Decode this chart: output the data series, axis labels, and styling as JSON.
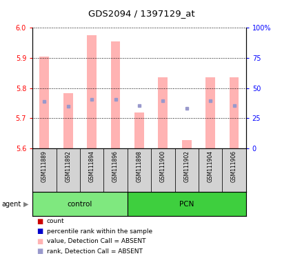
{
  "title": "GDS2094 / 1397129_at",
  "samples": [
    "GSM111889",
    "GSM111892",
    "GSM111894",
    "GSM111896",
    "GSM111898",
    "GSM111900",
    "GSM111902",
    "GSM111904",
    "GSM111906"
  ],
  "groups": [
    {
      "label": "control",
      "indices": [
        0,
        1,
        2,
        3
      ],
      "color": "#7fe87f"
    },
    {
      "label": "PCN",
      "indices": [
        4,
        5,
        6,
        7,
        8
      ],
      "color": "#3ecf3e"
    }
  ],
  "bar_tops": [
    5.905,
    5.783,
    5.975,
    5.955,
    5.718,
    5.835,
    5.627,
    5.836,
    5.836
  ],
  "bar_bottoms": [
    5.6,
    5.6,
    5.6,
    5.6,
    5.6,
    5.6,
    5.6,
    5.6,
    5.6
  ],
  "rank_squares": [
    5.755,
    5.74,
    5.762,
    5.762,
    5.742,
    5.758,
    5.732,
    5.758,
    5.742
  ],
  "bar_color": "#ffb3b3",
  "rank_color": "#9999cc",
  "bar_width": 0.4,
  "ylim_left": [
    5.6,
    6.0
  ],
  "ylim_right": [
    0,
    100
  ],
  "yticks_left": [
    5.6,
    5.7,
    5.8,
    5.9,
    6.0
  ],
  "yticks_right": [
    0,
    25,
    50,
    75,
    100
  ],
  "ytick_labels_right": [
    "0",
    "25",
    "50",
    "75",
    "100%"
  ],
  "agent_label": "agent",
  "legend_items": [
    {
      "color": "#cc0000",
      "label": "count"
    },
    {
      "color": "#0000cc",
      "label": "percentile rank within the sample"
    },
    {
      "color": "#ffb3b3",
      "label": "value, Detection Call = ABSENT"
    },
    {
      "color": "#9999cc",
      "label": "rank, Detection Call = ABSENT"
    }
  ]
}
